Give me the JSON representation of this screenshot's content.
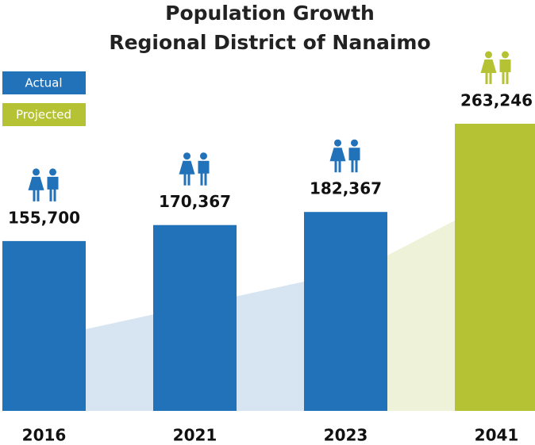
{
  "chart_data": {
    "type": "bar",
    "title": "Population Growth",
    "subtitle": "Regional District of Nanaimo",
    "categories": [
      "2016",
      "2021",
      "2023",
      "2041"
    ],
    "series": [
      {
        "name": "Actual",
        "color": "#2272b9",
        "values": [
          155700,
          170367,
          182367,
          null
        ],
        "value_labels": [
          "155,700",
          "170,367",
          "182,367",
          null
        ]
      },
      {
        "name": "Projected",
        "color": "#b5c234",
        "values": [
          null,
          null,
          null,
          263246
        ],
        "value_labels": [
          null,
          null,
          null,
          "263,246"
        ]
      }
    ]
  }
}
